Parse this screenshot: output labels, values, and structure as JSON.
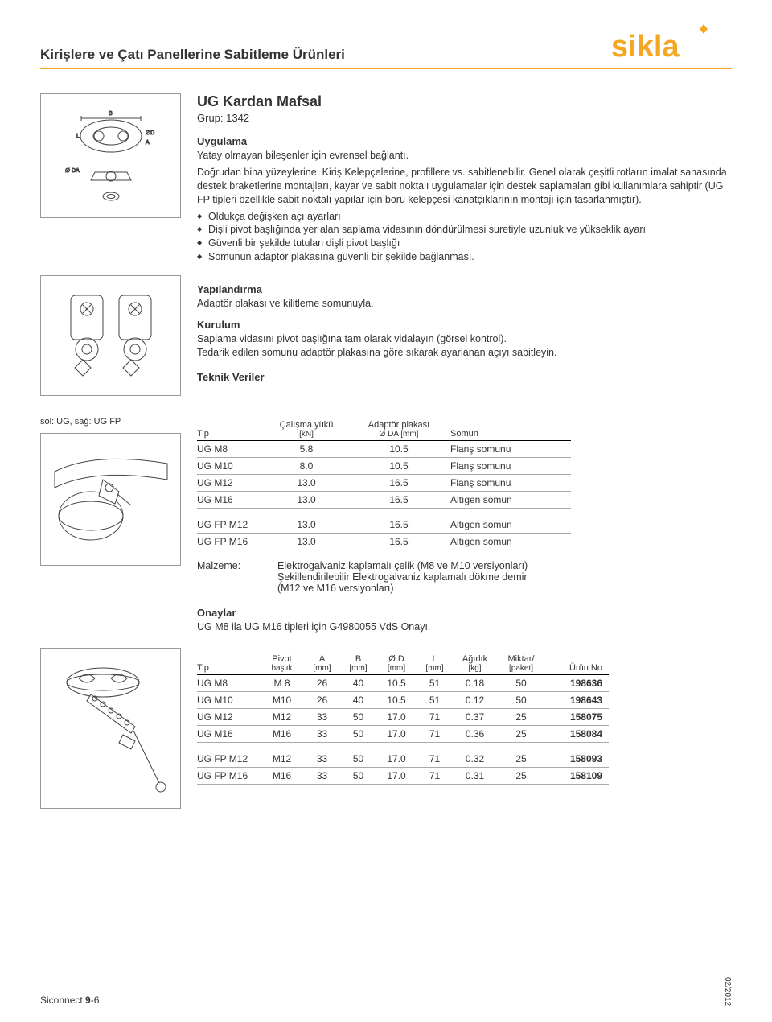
{
  "header": {
    "title": "Kirişlere ve Çatı Panellerine Sabitleme Ürünleri",
    "brand_color": "#f5a623",
    "logo_text": "sikla"
  },
  "product": {
    "title": "UG Kardan Mafsal",
    "group": "Grup: 1342"
  },
  "sections": {
    "uygulama": {
      "head": "Uygulama",
      "p1": "Yatay olmayan bileşenler için evrensel bağlantı.",
      "p2": "Doğrudan bina yüzeylerine, Kiriş Kelepçelerine, profillere vs. sabitlenebilir. Genel olarak çeşitli rotların imalat sahasında destek braketlerine montajları, kayar ve sabit noktalı uygulamalar için destek saplamaları gibi kullanımlara sahiptir (UG FP tipleri özellikle sabit noktalı yapılar için boru kelepçesi kanatçıklarının montajı için tasarlanmıştır).",
      "bullets": [
        "Oldukça değişken açı ayarları",
        "Dişli pivot başlığında yer alan saplama vidasının döndürülmesi suretiyle uzunluk ve yükseklik ayarı",
        "Güvenli bir şekilde tutulan dişli pivot başlığı",
        "Somunun adaptör plakasına güvenli bir şekilde bağlanması."
      ]
    },
    "yapilandirma": {
      "head": "Yapılandırma",
      "body": "Adaptör plakası ve kilitleme somunuyla."
    },
    "kurulum": {
      "head": "Kurulum",
      "l1": "Saplama vidasını pivot başlığına tam olarak vidalayın (görsel kontrol).",
      "l2": "Tedarik edilen somunu adaptör plakasına göre sıkarak ayarlanan açıyı sabitleyin."
    },
    "teknik": {
      "head": "Teknik Veriler"
    },
    "onaylar": {
      "head": "Onaylar",
      "body": "UG M8 ila UG M16 tipleri için G4980055 VdS Onayı."
    }
  },
  "caption1": "sol: UG, sağ: UG FP",
  "table1": {
    "headers": {
      "c1": "Tip",
      "c2": "Çalışma yükü",
      "c2s": "[kN]",
      "c3": "Adaptör plakası",
      "c3s": "Ø DA [mm]",
      "c4": "Somun"
    },
    "rows": [
      [
        "UG M8",
        "5.8",
        "10.5",
        "Flanş somunu"
      ],
      [
        "UG M10",
        "8.0",
        "10.5",
        "Flanş somunu"
      ],
      [
        "UG M12",
        "13.0",
        "16.5",
        "Flanş somunu"
      ],
      [
        "UG M16",
        "13.0",
        "16.5",
        "Altıgen somun"
      ]
    ],
    "rows2": [
      [
        "UG FP M12",
        "13.0",
        "16.5",
        "Altıgen somun"
      ],
      [
        "UG FP M16",
        "13.0",
        "16.5",
        "Altıgen somun"
      ]
    ]
  },
  "malzeme": {
    "label": "Malzeme:",
    "l1": "Elektrogalvaniz kaplamalı çelik (M8 ve M10 versiyonları)",
    "l2": "Şekillendirilebilir Elektrogalvaniz kaplamalı dökme demir",
    "l3": "(M12 ve M16 versiyonları)"
  },
  "table2": {
    "headers": {
      "c1": "Tip",
      "c2": "Pivot",
      "c2s": "başlık",
      "c3": "A",
      "c3s": "[mm]",
      "c4": "B",
      "c4s": "[mm]",
      "c5": "Ø D",
      "c5s": "[mm]",
      "c6": "L",
      "c6s": "[mm]",
      "c7": "Ağırlık",
      "c7s": "[kg]",
      "c8": "Miktar/",
      "c8s": "[paket]",
      "c9": "Ürün No"
    },
    "rows": [
      [
        "UG M8",
        "M 8",
        "26",
        "40",
        "10.5",
        "51",
        "0.18",
        "50",
        "198636"
      ],
      [
        "UG M10",
        "M10",
        "26",
        "40",
        "10.5",
        "51",
        "0.12",
        "50",
        "198643"
      ],
      [
        "UG M12",
        "M12",
        "33",
        "50",
        "17.0",
        "71",
        "0.37",
        "25",
        "158075"
      ],
      [
        "UG M16",
        "M16",
        "33",
        "50",
        "17.0",
        "71",
        "0.36",
        "25",
        "158084"
      ]
    ],
    "rows2": [
      [
        "UG FP M12",
        "M12",
        "33",
        "50",
        "17.0",
        "71",
        "0.32",
        "25",
        "158093"
      ],
      [
        "UG FP M16",
        "M16",
        "33",
        "50",
        "17.0",
        "71",
        "0.31",
        "25",
        "158109"
      ]
    ]
  },
  "footer": {
    "left": "Siconnect 9-6",
    "right": "02/2012"
  }
}
